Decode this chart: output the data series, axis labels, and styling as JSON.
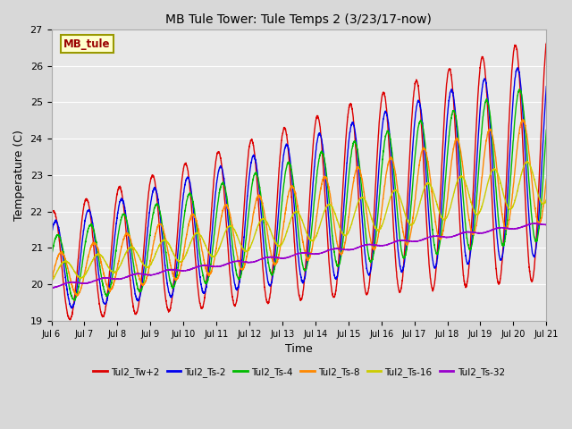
{
  "title": "MB Tule Tower: Tule Temps 2 (3/23/17-now)",
  "xlabel": "Time",
  "ylabel": "Temperature (C)",
  "ylim": [
    19.0,
    27.0
  ],
  "yticks": [
    19.0,
    20.0,
    21.0,
    22.0,
    23.0,
    24.0,
    25.0,
    26.0,
    27.0
  ],
  "xtick_labels": [
    "Jul 6",
    "Jul 7",
    "Jul 8",
    "Jul 9",
    "Jul 10",
    "Jul 11",
    "Jul 12",
    "Jul 13",
    "Jul 14",
    "Jul 15",
    "Jul 16",
    "Jul 17",
    "Jul 18",
    "Jul 19",
    "Jul 20",
    "Jul 21"
  ],
  "fig_bg_color": "#d8d8d8",
  "plot_bg_color": "#e8e8e8",
  "series": [
    {
      "name": "Tul2_Tw+2",
      "color": "#dd0000"
    },
    {
      "name": "Tul2_Ts-2",
      "color": "#0000ee"
    },
    {
      "name": "Tul2_Ts-4",
      "color": "#00bb00"
    },
    {
      "name": "Tul2_Ts-8",
      "color": "#ff8800"
    },
    {
      "name": "Tul2_Ts-16",
      "color": "#cccc00"
    },
    {
      "name": "Tul2_Ts-32",
      "color": "#9900cc"
    }
  ],
  "annotation_text": "MB_tule",
  "annotation_color": "#990000",
  "annotation_bg": "#ffffcc",
  "annotation_border": "#999900",
  "grid_color": "#ffffff",
  "linewidth": 1.0
}
